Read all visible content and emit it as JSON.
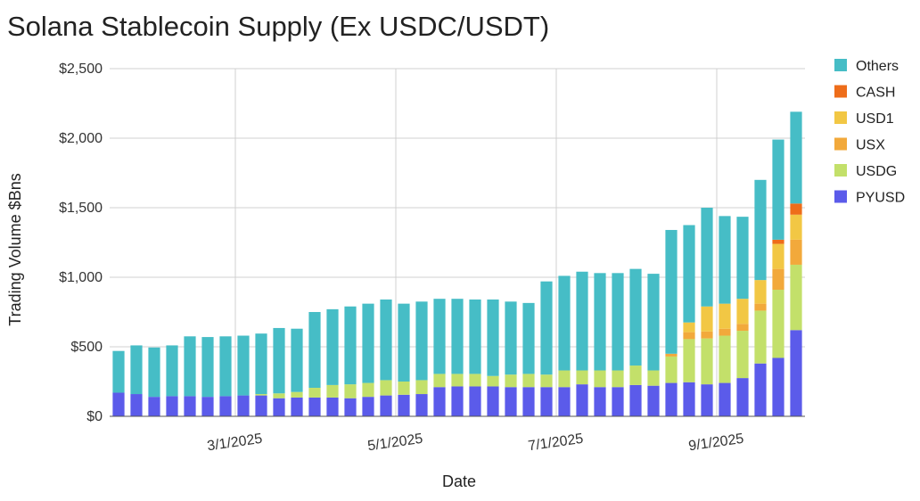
{
  "chart_data": {
    "type": "bar",
    "stacked": true,
    "title": "Solana Stablecoin Supply (Ex USDC/USDT)",
    "xlabel": "Date",
    "ylabel": "Trading Volume $Bns",
    "ylim": [
      0,
      2500
    ],
    "yticks": [
      "$0",
      "$500",
      "$1,000",
      "$1,500",
      "$2,000",
      "$2,500"
    ],
    "ytick_values": [
      0,
      500,
      1000,
      1500,
      2000,
      2500
    ],
    "xticks": [
      {
        "label": "3/1/2025",
        "index": 6
      },
      {
        "label": "5/1/2025",
        "index": 15
      },
      {
        "label": "7/1/2025",
        "index": 24
      },
      {
        "label": "9/1/2025",
        "index": 33
      }
    ],
    "grid": true,
    "legend_position": "right",
    "series": [
      {
        "name": "PYUSD",
        "color": "#5b5bea",
        "values": [
          170,
          160,
          140,
          145,
          145,
          140,
          145,
          150,
          150,
          130,
          135,
          135,
          135,
          130,
          140,
          150,
          155,
          160,
          210,
          215,
          215,
          215,
          210,
          210,
          210,
          210,
          230,
          210,
          210,
          225,
          220,
          240,
          245,
          230,
          240,
          275,
          380,
          420,
          620
        ]
      },
      {
        "name": "USDG",
        "color": "#c3e06a",
        "values": [
          0,
          0,
          0,
          0,
          0,
          0,
          0,
          0,
          10,
          35,
          40,
          70,
          90,
          100,
          100,
          110,
          95,
          100,
          95,
          90,
          90,
          75,
          90,
          95,
          90,
          120,
          100,
          120,
          120,
          140,
          110,
          190,
          310,
          330,
          340,
          340,
          380,
          490,
          470
        ]
      },
      {
        "name": "USX",
        "color": "#f2a93b",
        "values": [
          0,
          0,
          0,
          0,
          0,
          0,
          0,
          0,
          0,
          0,
          0,
          0,
          0,
          0,
          0,
          0,
          0,
          0,
          0,
          0,
          0,
          0,
          0,
          0,
          0,
          0,
          0,
          0,
          0,
          0,
          0,
          20,
          50,
          50,
          50,
          50,
          50,
          150,
          180
        ]
      },
      {
        "name": "USD1",
        "color": "#f2c744",
        "values": [
          0,
          0,
          0,
          0,
          0,
          0,
          0,
          0,
          0,
          0,
          0,
          0,
          0,
          0,
          0,
          0,
          0,
          0,
          0,
          0,
          0,
          0,
          0,
          0,
          0,
          0,
          0,
          0,
          0,
          0,
          0,
          0,
          70,
          180,
          180,
          180,
          170,
          180,
          180
        ]
      },
      {
        "name": "CASH",
        "color": "#ee6d1a",
        "values": [
          0,
          0,
          0,
          0,
          0,
          0,
          0,
          0,
          0,
          0,
          0,
          0,
          0,
          0,
          0,
          0,
          0,
          0,
          0,
          0,
          0,
          0,
          0,
          0,
          0,
          0,
          0,
          0,
          0,
          0,
          0,
          0,
          0,
          0,
          0,
          0,
          0,
          30,
          80
        ]
      },
      {
        "name": "Others",
        "color": "#46bdc6",
        "values": [
          300,
          350,
          355,
          365,
          430,
          430,
          430,
          430,
          435,
          470,
          455,
          545,
          545,
          560,
          570,
          580,
          560,
          565,
          540,
          540,
          535,
          550,
          525,
          510,
          670,
          680,
          710,
          700,
          700,
          695,
          695,
          890,
          700,
          710,
          630,
          590,
          720,
          720,
          660
        ]
      }
    ]
  }
}
